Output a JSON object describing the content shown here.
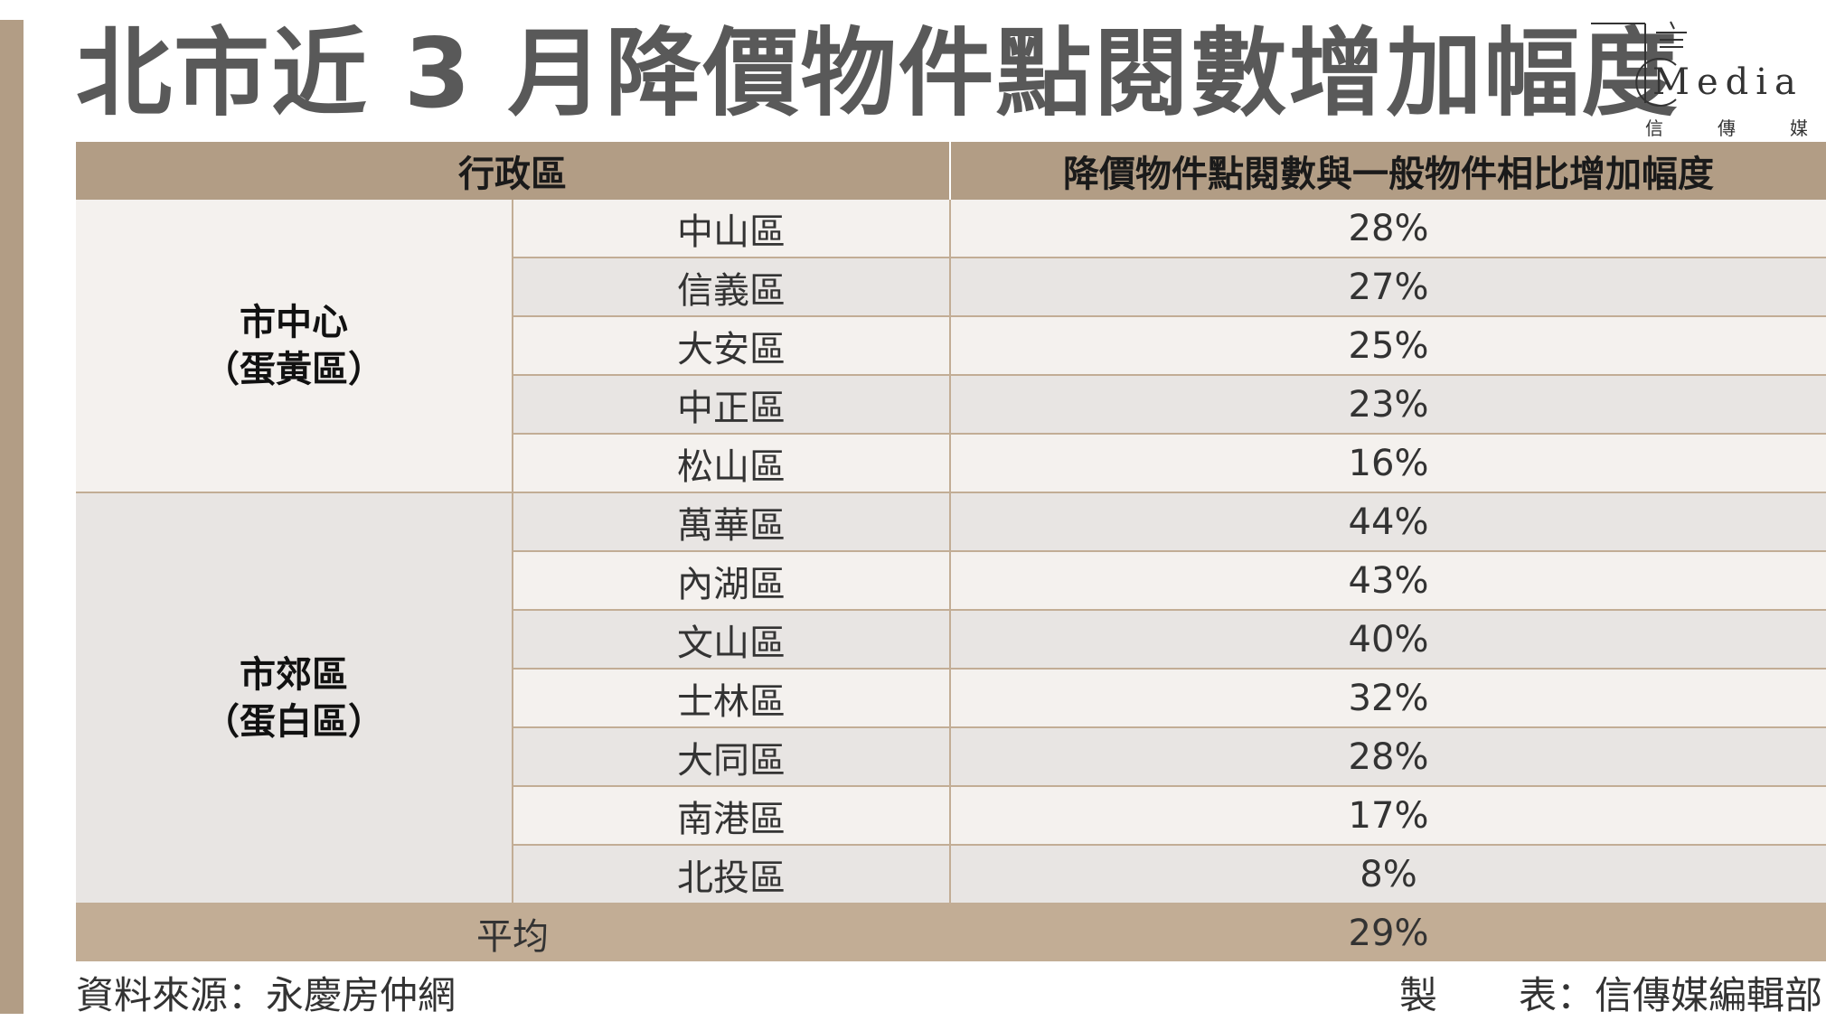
{
  "title": "北市近 3 月降價物件點閱數增加幅度",
  "logo": {
    "text": "Media",
    "sub": [
      "信",
      "傳",
      "媒"
    ]
  },
  "table": {
    "headers": [
      "行政區",
      "降價物件點閱數與一般物件相比增加幅度"
    ],
    "groups": [
      {
        "name_line1": "市中心",
        "name_line2": "（蛋黃區）",
        "rows": [
          {
            "district": "中山區",
            "value": "28%"
          },
          {
            "district": "信義區",
            "value": "27%"
          },
          {
            "district": "大安區",
            "value": "25%"
          },
          {
            "district": "中正區",
            "value": "23%"
          },
          {
            "district": "松山區",
            "value": "16%"
          }
        ]
      },
      {
        "name_line1": "市郊區",
        "name_line2": "（蛋白區）",
        "rows": [
          {
            "district": "萬華區",
            "value": "44%"
          },
          {
            "district": "內湖區",
            "value": "43%"
          },
          {
            "district": "文山區",
            "value": "40%"
          },
          {
            "district": "士林區",
            "value": "32%"
          },
          {
            "district": "大同區",
            "value": "28%"
          },
          {
            "district": "南港區",
            "value": "17%"
          },
          {
            "district": "北投區",
            "value": "8%"
          }
        ]
      }
    ],
    "average": {
      "label": "平均",
      "value": "29%"
    }
  },
  "footer": {
    "source": "資料來源：永慶房仲網",
    "credit_label_1": "製",
    "credit_label_2": "表：信傳媒編輯部"
  },
  "colors": {
    "accent": "#b29d85",
    "row_light": "#f4f1ee",
    "row_dark": "#e8e5e3",
    "average_row": "#c2ad95"
  }
}
